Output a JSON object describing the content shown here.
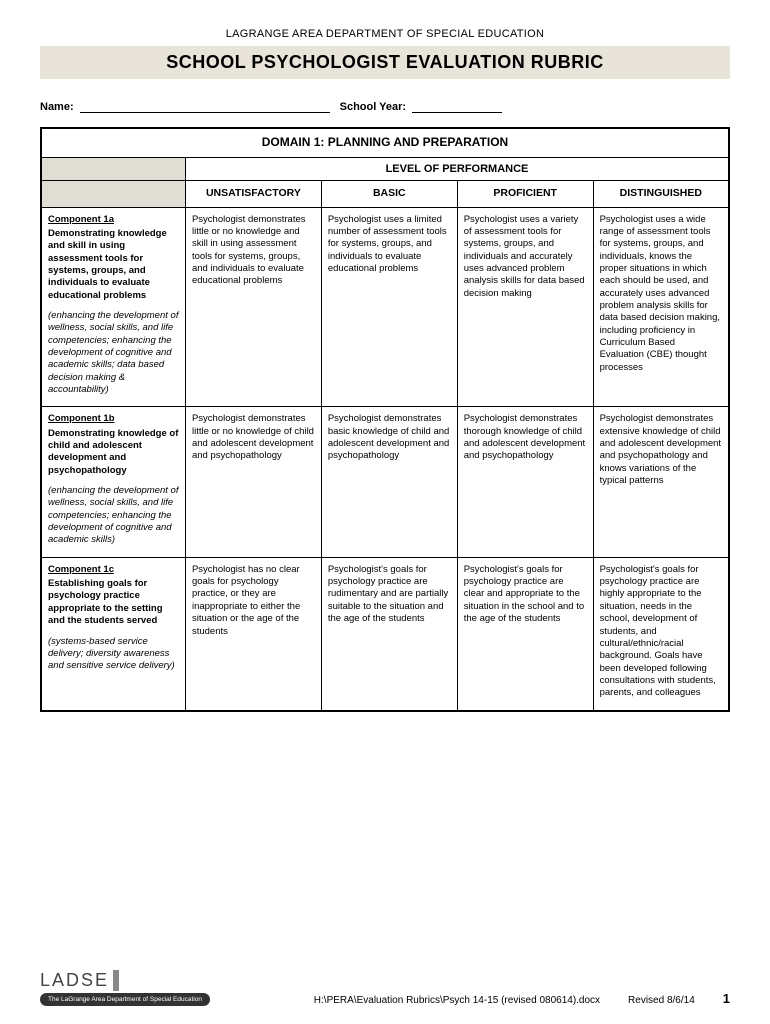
{
  "org": "LAGRANGE AREA DEPARTMENT OF SPECIAL EDUCATION",
  "title": "SCHOOL PSYCHOLOGIST EVALUATION RUBRIC",
  "fields": {
    "name_label": "Name:",
    "year_label": "School Year:"
  },
  "domain_title": "DOMAIN 1:  PLANNING AND PREPARATION",
  "level_header": "LEVEL OF PERFORMANCE",
  "columns": {
    "unsat": "UNSATISFACTORY",
    "basic": "BASIC",
    "prof": "PROFICIENT",
    "dist": "DISTINGUISHED"
  },
  "rows": [
    {
      "comp_id": "Component 1a",
      "comp_desc": "Demonstrating knowledge and skill in using assessment tools for systems, groups, and individuals to evaluate educational problems",
      "comp_note": "(enhancing the development of wellness, social skills, and life competencies; enhancing the development of cognitive and academic skills; data based decision making & accountability)",
      "unsat": "Psychologist demonstrates little or no knowledge and skill in using assessment tools for systems, groups, and individuals to evaluate educational problems",
      "basic": "Psychologist uses a limited number of assessment tools for systems, groups, and individuals to evaluate educational problems",
      "prof": "Psychologist uses a variety of assessment tools for systems, groups, and individuals and accurately uses advanced problem analysis skills for data based decision making",
      "dist": "Psychologist uses a wide range of assessment tools for systems, groups, and individuals, knows the proper situations in which each should be used, and accurately uses advanced problem analysis skills for data based decision making, including proficiency in Curriculum Based Evaluation (CBE) thought processes"
    },
    {
      "comp_id": "Component 1b",
      "comp_desc": "Demonstrating knowledge of child and adolescent development and psychopathology",
      "comp_note": "(enhancing the development of wellness, social skills, and life competencies; enhancing the development of cognitive and academic skills)",
      "unsat": "Psychologist demonstrates little or no knowledge of child and adolescent development and psychopathology",
      "basic": "Psychologist demonstrates basic knowledge of child and adolescent development and psychopathology",
      "prof": "Psychologist demonstrates thorough knowledge of child and adolescent development and psychopathology",
      "dist": "Psychologist demonstrates extensive knowledge of child and adolescent development and psychopathology and knows variations of the typical patterns"
    },
    {
      "comp_id": "Component 1c",
      "comp_desc": "Establishing goals for psychology practice appropriate to the setting and the students served",
      "comp_note": "(systems-based service delivery; diversity awareness and sensitive service delivery)",
      "unsat": "Psychologist has no clear goals for psychology practice, or they are inappropriate to either the situation or the age of the students",
      "basic": "Psychologist's goals for psychology practice are rudimentary and are partially suitable to the situation and the age of the students",
      "prof": "Psychologist's goals for psychology practice are clear and appropriate to the situation in the school and to the age of the students",
      "dist": "Psychologist's goals for psychology practice are highly appropriate to the situation, needs in the school, development of students, and cultural/ethnic/racial background.  Goals have been developed following consultations with students, parents, and colleagues"
    }
  ],
  "footer": {
    "logo": "LADSE",
    "logo_sub": "The LaGrange Area Department of\nSpecial Education",
    "path": "H:\\PERA\\Evaluation Rubrics\\Psych 14-15 (revised 080614).docx",
    "revised": "Revised 8/6/14",
    "page": "1"
  },
  "colors": {
    "title_bg": "#e8e4da",
    "blank_header_bg": "#e0ddd4",
    "border": "#000000"
  }
}
